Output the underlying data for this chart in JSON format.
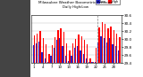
{
  "title": "Milwaukee Weather Barometric Pressure",
  "subtitle": "Daily High/Low",
  "legend_high": "High",
  "legend_low": "Low",
  "high_color": "#ff0000",
  "low_color": "#2222cc",
  "background_color": "#ffffff",
  "plot_bg": "#ffffff",
  "ylim": [
    29.4,
    30.6
  ],
  "ytick_vals": [
    29.4,
    29.6,
    29.8,
    30.0,
    30.2,
    30.4,
    30.6
  ],
  "ytick_labels": [
    "29.4",
    "29.6",
    "29.8",
    "30.0",
    "30.2",
    "30.4",
    "30.6"
  ],
  "bar_width": 0.4,
  "categories": [
    "1",
    "2",
    "3",
    "4",
    "5",
    "6",
    "7",
    "8",
    "9",
    "10",
    "11",
    "12",
    "13",
    "14",
    "15",
    "16",
    "17",
    "18",
    "19",
    "20",
    "21",
    "22",
    "23",
    "24",
    "25",
    "26",
    "27",
    "28",
    "29",
    "30"
  ],
  "highs": [
    30.1,
    30.15,
    30.2,
    30.02,
    29.88,
    29.62,
    29.85,
    30.05,
    30.22,
    30.28,
    30.18,
    29.9,
    29.72,
    29.9,
    30.0,
    30.12,
    30.08,
    29.98,
    29.88,
    29.52,
    29.42,
    29.78,
    30.3,
    30.42,
    30.38,
    30.28,
    30.32,
    30.22,
    30.15,
    30.05
  ],
  "lows": [
    29.85,
    29.9,
    29.95,
    29.68,
    29.52,
    29.42,
    29.58,
    29.78,
    29.98,
    30.02,
    29.82,
    29.58,
    29.45,
    29.58,
    29.78,
    29.82,
    29.72,
    29.62,
    29.52,
    29.42,
    29.42,
    29.42,
    29.92,
    30.08,
    30.02,
    29.92,
    30.02,
    29.88,
    29.82,
    29.72
  ],
  "dashed_vline_x": 21.5,
  "left_margin_color": "#333333"
}
